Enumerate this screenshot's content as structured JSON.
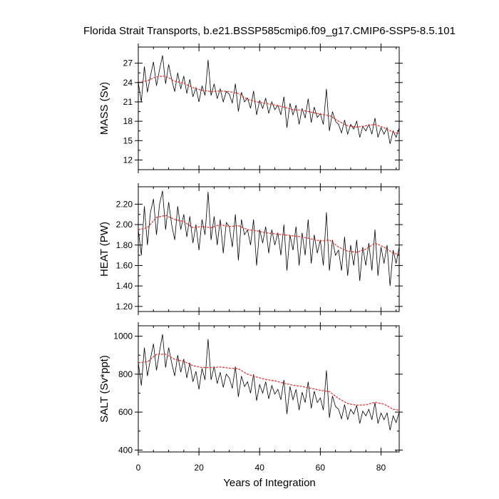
{
  "chart_data": {
    "title": "Florida Strait Transports, b.e21.BSSP585cmip6.f09_g17.CMIP6-SSP5-8.5.101",
    "xlabel": "Years of Integration",
    "xlim": [
      0,
      86
    ],
    "x_ticks": [
      0,
      20,
      40,
      60,
      80
    ],
    "x_tick_labels": [
      "0",
      "20",
      "40",
      "60",
      "80"
    ],
    "raw_color": "#000000",
    "smooth_color": "#e03a3a",
    "panels": [
      {
        "type": "line",
        "ylabel": "MASS (Sv)",
        "ylim": [
          10.5,
          29.5
        ],
        "y_ticks": [
          12,
          15,
          18,
          21,
          24,
          27
        ],
        "y_tick_labels": [
          "12",
          "15",
          "18",
          "21",
          "24",
          "27"
        ],
        "series": [
          {
            "kind": "raw",
            "x": [
              0,
              1,
              2,
              3,
              4,
              5,
              6,
              7,
              8,
              9,
              10,
              11,
              12,
              13,
              14,
              15,
              16,
              17,
              18,
              19,
              20,
              21,
              22,
              23,
              24,
              25,
              26,
              27,
              28,
              29,
              30,
              31,
              32,
              33,
              34,
              35,
              36,
              37,
              38,
              39,
              40,
              41,
              42,
              43,
              44,
              45,
              46,
              47,
              48,
              49,
              50,
              51,
              52,
              53,
              54,
              55,
              56,
              57,
              58,
              59,
              60,
              61,
              62,
              63,
              64,
              65,
              66,
              67,
              68,
              69,
              70,
              71,
              72,
              73,
              74,
              75,
              76,
              77,
              78,
              79,
              80,
              81,
              82,
              83,
              84,
              85,
              86
            ],
            "values": [
              24.0,
              21.0,
              26.5,
              22.5,
              25.0,
              27.2,
              23.5,
              26.0,
              28.2,
              23.8,
              26.8,
              24.5,
              22.6,
              25.5,
              23.0,
              25.0,
              22.3,
              24.5,
              21.8,
              23.2,
              21.0,
              23.5,
              22.0,
              27.5,
              22.0,
              23.8,
              21.5,
              23.0,
              21.0,
              22.6,
              22.2,
              20.8,
              23.8,
              19.5,
              22.5,
              21.0,
              21.6,
              20.0,
              22.7,
              19.0,
              21.2,
              20.0,
              21.6,
              19.2,
              21.0,
              19.8,
              20.5,
              19.0,
              21.8,
              17.0,
              20.8,
              19.0,
              20.5,
              17.5,
              20.0,
              18.5,
              21.5,
              17.8,
              20.2,
              18.6,
              19.2,
              17.5,
              23.0,
              16.5,
              19.5,
              18.0,
              17.5,
              16.2,
              18.2,
              16.0,
              17.5,
              16.8,
              18.0,
              15.5,
              17.2,
              16.5,
              17.5,
              16.0,
              18.5,
              15.5,
              17.0,
              16.0,
              17.0,
              14.5,
              16.5,
              15.5,
              17.0
            ]
          },
          {
            "kind": "smoothed",
            "x": [
              0,
              3,
              6,
              9,
              12,
              15,
              18,
              21,
              24,
              27,
              30,
              33,
              36,
              39,
              42,
              45,
              48,
              51,
              54,
              57,
              60,
              63,
              66,
              69,
              72,
              75,
              78,
              81,
              84,
              86
            ],
            "values": [
              24.0,
              24.3,
              24.9,
              25.0,
              24.2,
              23.9,
              23.2,
              22.8,
              22.6,
              22.7,
              22.6,
              22.3,
              21.4,
              21.0,
              20.8,
              20.5,
              20.2,
              19.8,
              19.7,
              19.4,
              19.1,
              18.9,
              18.0,
              17.3,
              17.1,
              17.3,
              17.5,
              17.0,
              16.3,
              16.1
            ]
          }
        ]
      },
      {
        "type": "line",
        "ylabel": "HEAT (PW)",
        "ylim": [
          1.15,
          2.37
        ],
        "y_ticks": [
          1.2,
          1.4,
          1.6,
          1.8,
          2.0,
          2.2
        ],
        "y_tick_labels": [
          "1.20",
          "1.40",
          "1.60",
          "1.80",
          "2.00",
          "2.20"
        ],
        "series": [
          {
            "kind": "raw",
            "x": [
              0,
              1,
              2,
              3,
              4,
              5,
              6,
              7,
              8,
              9,
              10,
              11,
              12,
              13,
              14,
              15,
              16,
              17,
              18,
              19,
              20,
              21,
              22,
              23,
              24,
              25,
              26,
              27,
              28,
              29,
              30,
              31,
              32,
              33,
              34,
              35,
              36,
              37,
              38,
              39,
              40,
              41,
              42,
              43,
              44,
              45,
              46,
              47,
              48,
              49,
              50,
              51,
              52,
              53,
              54,
              55,
              56,
              57,
              58,
              59,
              60,
              61,
              62,
              63,
              64,
              65,
              66,
              67,
              68,
              69,
              70,
              71,
              72,
              73,
              74,
              75,
              76,
              77,
              78,
              79,
              80,
              81,
              82,
              83,
              84,
              85,
              86
            ],
            "values": [
              1.95,
              1.7,
              2.18,
              1.8,
              2.12,
              2.25,
              1.9,
              2.2,
              2.33,
              1.95,
              2.22,
              2.0,
              1.85,
              2.18,
              1.95,
              2.1,
              1.88,
              2.08,
              1.82,
              2.0,
              1.75,
              2.05,
              1.9,
              2.32,
              1.85,
              2.08,
              1.8,
              2.05,
              1.72,
              2.02,
              1.98,
              1.78,
              2.1,
              1.65,
              2.05,
              1.9,
              1.95,
              1.8,
              2.05,
              1.6,
              1.95,
              1.82,
              1.98,
              1.72,
              1.95,
              1.8,
              1.92,
              1.7,
              2.0,
              1.55,
              1.9,
              1.75,
              1.98,
              1.6,
              1.92,
              1.7,
              2.05,
              1.62,
              1.9,
              1.72,
              1.85,
              1.6,
              2.12,
              1.55,
              1.85,
              1.7,
              1.75,
              1.55,
              1.88,
              1.5,
              1.8,
              1.6,
              1.85,
              1.45,
              1.78,
              1.6,
              1.82,
              1.55,
              1.95,
              1.5,
              1.78,
              1.62,
              1.8,
              1.4,
              1.75,
              1.62,
              1.78
            ]
          },
          {
            "kind": "smoothed",
            "x": [
              0,
              3,
              6,
              9,
              12,
              15,
              18,
              21,
              24,
              27,
              30,
              33,
              36,
              39,
              42,
              45,
              48,
              51,
              54,
              57,
              60,
              63,
              66,
              69,
              72,
              75,
              78,
              81,
              84,
              86
            ],
            "values": [
              1.95,
              1.97,
              2.07,
              2.09,
              2.05,
              2.03,
              1.97,
              1.98,
              1.97,
              2.0,
              1.98,
              1.99,
              1.95,
              1.94,
              1.92,
              1.91,
              1.9,
              1.89,
              1.88,
              1.86,
              1.84,
              1.85,
              1.78,
              1.74,
              1.73,
              1.76,
              1.82,
              1.78,
              1.72,
              1.71
            ]
          }
        ]
      },
      {
        "type": "line",
        "ylabel": "SALT (Sv*ppt)",
        "ylim": [
          390,
          1055
        ],
        "y_ticks": [
          400,
          600,
          800,
          1000
        ],
        "y_tick_labels": [
          "400",
          "600",
          "800",
          "1000"
        ],
        "series": [
          {
            "kind": "raw",
            "x": [
              0,
              1,
              2,
              3,
              4,
              5,
              6,
              7,
              8,
              9,
              10,
              11,
              12,
              13,
              14,
              15,
              16,
              17,
              18,
              19,
              20,
              21,
              22,
              23,
              24,
              25,
              26,
              27,
              28,
              29,
              30,
              31,
              32,
              33,
              34,
              35,
              36,
              37,
              38,
              39,
              40,
              41,
              42,
              43,
              44,
              45,
              46,
              47,
              48,
              49,
              50,
              51,
              52,
              53,
              54,
              55,
              56,
              57,
              58,
              59,
              60,
              61,
              62,
              63,
              64,
              65,
              66,
              67,
              68,
              69,
              70,
              71,
              72,
              73,
              74,
              75,
              76,
              77,
              78,
              79,
              80,
              81,
              82,
              83,
              84,
              85,
              86
            ],
            "values": [
              860,
              740,
              940,
              790,
              880,
              960,
              820,
              920,
              1010,
              835,
              940,
              860,
              790,
              900,
              810,
              880,
              780,
              860,
              760,
              815,
              720,
              830,
              770,
              985,
              770,
              840,
              750,
              810,
              730,
              800,
              780,
              725,
              840,
              680,
              790,
              735,
              760,
              700,
              800,
              660,
              745,
              700,
              760,
              670,
              740,
              695,
              720,
              665,
              770,
              590,
              735,
              665,
              720,
              610,
              705,
              650,
              760,
              620,
              710,
              650,
              675,
              610,
              820,
              570,
              685,
              630,
              615,
              565,
              640,
              560,
              615,
              590,
              635,
              540,
              605,
              580,
              615,
              560,
              650,
              540,
              595,
              560,
              595,
              505,
              580,
              545,
              600
            ]
          },
          {
            "kind": "smoothed",
            "x": [
              0,
              3,
              6,
              9,
              12,
              15,
              18,
              21,
              24,
              27,
              30,
              33,
              36,
              39,
              42,
              45,
              48,
              51,
              54,
              57,
              60,
              63,
              66,
              69,
              72,
              75,
              78,
              81,
              84,
              86
            ],
            "values": [
              860,
              865,
              905,
              905,
              878,
              868,
              845,
              835,
              835,
              838,
              832,
              828,
              800,
              785,
              772,
              765,
              752,
              742,
              735,
              725,
              715,
              708,
              672,
              645,
              637,
              638,
              652,
              642,
              615,
              610
            ]
          }
        ]
      }
    ]
  }
}
